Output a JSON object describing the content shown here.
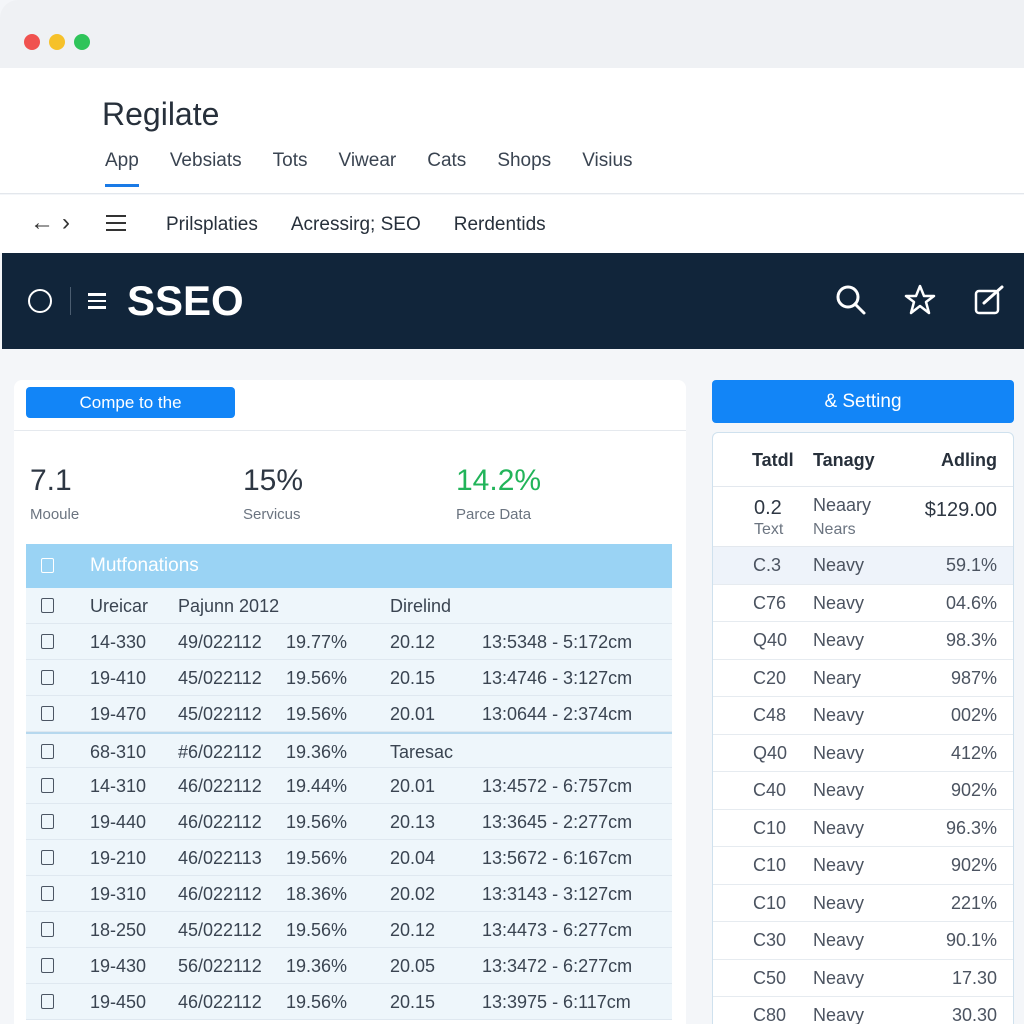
{
  "app": {
    "title": "Regilate"
  },
  "tabs": [
    {
      "label": "App",
      "active": true
    },
    {
      "label": "Vebsiats"
    },
    {
      "label": "Tots"
    },
    {
      "label": "Viwear"
    },
    {
      "label": "Cats"
    },
    {
      "label": "Shops"
    },
    {
      "label": "Visius"
    }
  ],
  "nav": {
    "back_icon": "arrow-left-icon",
    "forward_icon": "chevron-right-icon",
    "crumbs": [
      "Prilsplaties",
      "Acressirg; SEO",
      "Rerdentids"
    ]
  },
  "header": {
    "brand": "SSEO",
    "icons": [
      "refresh-icon",
      "menu-icon",
      "search-icon",
      "star-icon",
      "edit-icon"
    ]
  },
  "main": {
    "primary_button": "Compe to the",
    "stats": [
      {
        "value": "7.1",
        "label": "Mooule",
        "color": "#2e3743"
      },
      {
        "value": "15%",
        "label": "Servicus",
        "color": "#2e3743"
      },
      {
        "value": "14.2%",
        "label": "Parce Data",
        "color": "#22b45a"
      }
    ],
    "table": {
      "title": "Mutfonations",
      "header_row": [
        "Ureicar",
        "Pajunn 2012",
        "",
        "Direlind",
        ""
      ],
      "rows_a": [
        [
          "14-330",
          "49/022112",
          "19.77%",
          "20.12",
          "13:5348 - 5:172cm"
        ],
        [
          "19-410",
          "45/022112",
          "19.56%",
          "20.15",
          "13:4746 - 3:127cm"
        ],
        [
          "19-470",
          "45/022112",
          "19.56%",
          "20.01",
          "13:0644 - 2:374cm"
        ]
      ],
      "section_row": [
        "68-310",
        "#6/022112",
        "19.36%",
        "Taresac",
        ""
      ],
      "rows_b": [
        [
          "14-310",
          "46/022112",
          "19.44%",
          "20.01",
          "13:4572 - 6:757cm"
        ],
        [
          "19-440",
          "46/022112",
          "19.56%",
          "20.13",
          "13:3645 - 2:277cm"
        ],
        [
          "19-210",
          "46/022113",
          "19.56%",
          "20.04",
          "13:5672 - 6:167cm"
        ],
        [
          "19-310",
          "46/022112",
          "18.36%",
          "20.02",
          "13:3143 - 3:127cm"
        ],
        [
          "18-250",
          "45/022112",
          "19.56%",
          "20.12",
          "13:4473 - 6:277cm"
        ],
        [
          "19-430",
          "56/022112",
          "19.36%",
          "20.05",
          "13:3472 - 6:277cm"
        ],
        [
          "19-450",
          "46/022112",
          "19.56%",
          "20.15",
          "13:3975 - 6:117cm"
        ]
      ]
    }
  },
  "side": {
    "button": "& Setting",
    "headers": [
      "Tatdl",
      "Tanagy",
      "Adling"
    ],
    "first_row": {
      "code": "0.2",
      "code_sub": "Text",
      "name": "Neaary",
      "name_sub": "Nears",
      "value": "$129.00"
    },
    "rows": [
      [
        "C.3",
        "Neavy",
        "59.1%"
      ],
      [
        "C76",
        "Neavy",
        "04.6%"
      ],
      [
        "Q40",
        "Neavy",
        "98.3%"
      ],
      [
        "C20",
        "Neary",
        "987%"
      ],
      [
        "C48",
        "Neavy",
        "002%"
      ],
      [
        "Q40",
        "Neavy",
        "412%"
      ],
      [
        "C40",
        "Neavy",
        "902%"
      ],
      [
        "C10",
        "Neavy",
        "96.3%"
      ],
      [
        "C10",
        "Neavy",
        "902%"
      ],
      [
        "C10",
        "Neavy",
        "221%"
      ],
      [
        "C30",
        "Neavy",
        "90.1%"
      ],
      [
        "C50",
        "Neavy",
        "17.30"
      ],
      [
        "C80",
        "Neavy",
        "30.30"
      ]
    ]
  }
}
